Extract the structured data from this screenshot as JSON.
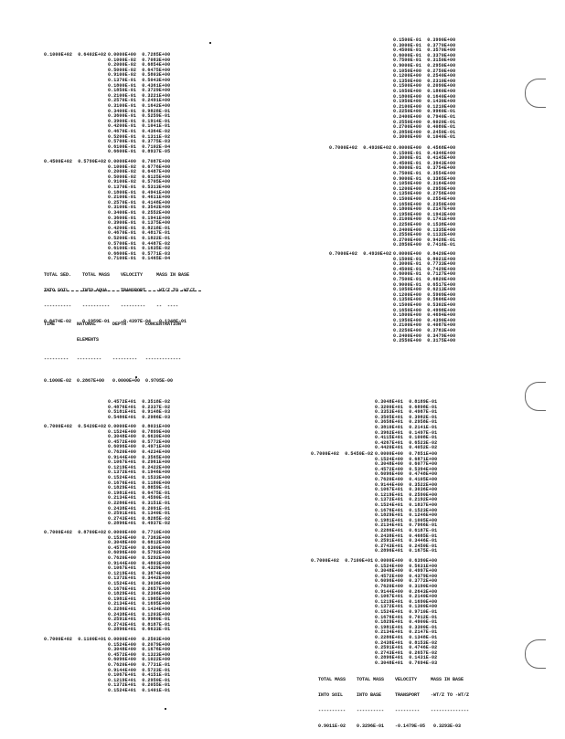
{
  "blocks": [
    {
      "id": "tl1",
      "label": "0.1000E+02  0.6402E+02",
      "rows": [
        "0.0000E+00  0.7285E+00",
        "0.1000E-02  0.7083E+00",
        "0.2000E-02  0.6854E+00",
        "0.5000E-02  0.6475E+00",
        "0.9100E-02  0.5803E+00",
        "0.1370E-01  0.5043E+00",
        "0.1800E-01  0.4361E+00",
        "0.1850E-01  0.3729E+00",
        "0.2100E-01  0.3221E+00",
        "0.2570E-01  0.2491E+00",
        "0.3100E-01  0.1642E+00",
        "0.3400E-01  0.9828E-01",
        "0.3600E-01  0.5259E-01",
        "0.3900E-01  0.1914E-01",
        "0.4200E-01  0.1041E-01",
        "0.4670E-01  0.4364E-02",
        "0.5200E-01  0.1311E-02",
        "0.5700E-01  0.3775E-03",
        "0.6100E-01  0.7102E-04",
        "0.6600E-01  0.8937E-05"
      ]
    },
    {
      "id": "tl2",
      "label": "0.4500E+02  0.5790E+02",
      "rows": [
        "0.0000E+00  0.7087E+00",
        "0.1000E-02  0.6776E+00",
        "0.2000E-02  0.6487E+00",
        "0.5000E-02  0.6125E+00",
        "0.9100E-02  0.5705E+00",
        "0.1370E-01  0.5313E+00",
        "0.1800E-01  0.4941E+00",
        "0.2100E-01  0.4611E+00",
        "0.2570E-01  0.4148E+00",
        "0.3100E-01  0.3542E+00",
        "0.3400E-01  0.2552E+00",
        "0.3600E-01  0.1941E+00",
        "0.3900E-01  0.1375E+00",
        "0.4200E-01  0.8218E-01",
        "0.4670E-01  0.4817E-01",
        "0.5200E-01  0.1822E-01",
        "0.5700E-01  0.4487E-02",
        "0.6100E-01  0.1635E-02",
        "0.6600E-01  0.5771E-03",
        "0.7100E-01  0.1465E-04"
      ]
    },
    {
      "id": "tr0",
      "label": "",
      "rows": [
        "0.1500E-01  0.3990E+00",
        "0.3000E-01  0.3770E+00",
        "0.4500E-01  0.3570E+00",
        "0.6000E-01  0.3370E+00",
        "0.7500E-01  0.3150E+00",
        "0.9000E-01  0.2950E+00",
        "0.1050E+00  0.2750E+00",
        "0.1200E+00  0.2540E+00",
        "0.1350E+00  0.2310E+00",
        "0.1500E+00  0.2090E+00",
        "0.1650E+00  0.1860E+00",
        "0.1800E+00  0.1640E+00",
        "0.1950E+00  0.1430E+00",
        "0.2100E+00  0.1210E+00",
        "0.2250E+00  0.9960E-01",
        "0.2400E+00  0.7940E-01",
        "0.2550E+00  0.6020E-01",
        "0.2700E+00  0.4080E-01",
        "0.2850E+00  0.2450E-01",
        "0.3000E+00  0.1040E-01"
      ]
    },
    {
      "id": "tr1",
      "label": "0.7000E+02  0.4930E+02",
      "rows": [
        "0.0000E+00  0.4568E+00",
        "0.1500E-01  0.4346E+00",
        "0.3000E-01  0.4145E+00",
        "0.4500E-01  0.3943E+00",
        "0.6000E-01  0.3754E+00",
        "0.7500E-01  0.3554E+00",
        "0.9000E-01  0.3365E+00",
        "0.1050E+00  0.3164E+00",
        "0.1200E+00  0.2959E+00",
        "0.1350E+00  0.2756E+00",
        "0.1500E+00  0.2554E+00",
        "0.1650E+00  0.2350E+00",
        "0.1800E+00  0.2147E+00",
        "0.1950E+00  0.1943E+00",
        "0.2100E+00  0.1741E+00",
        "0.2250E+00  0.1538E+00",
        "0.2400E+00  0.1335E+00",
        "0.2550E+00  0.1132E+00",
        "0.2700E+00  0.9428E-01",
        "0.2850E+00  0.7416E-01"
      ]
    },
    {
      "id": "tr2",
      "label": "0.7000E+02  0.4930E+02",
      "rows": [
        "0.0000E+00  0.8420E+00",
        "0.1500E-01  0.8021E+00",
        "0.3000E-01  0.7733E+00",
        "0.4500E-01  0.7429E+00",
        "0.6000E-01  0.7127E+00",
        "0.7500E-01  0.6820E+00",
        "0.9000E-01  0.6517E+00",
        "0.1050E+00  0.6213E+00",
        "0.1200E+00  0.5909E+00",
        "0.1350E+00  0.5606E+00",
        "0.1500E+00  0.5302E+00",
        "0.1650E+00  0.4998E+00",
        "0.1800E+00  0.4694E+00",
        "0.1950E+00  0.4390E+00",
        "0.2100E+00  0.4087E+00",
        "0.2250E+00  0.3783E+00",
        "0.2400E+00  0.3479E+00",
        "0.2550E+00  0.3175E+00"
      ]
    },
    {
      "id": "bl0",
      "label": "",
      "rows": [
        "0.4572E+01  0.3518E-02",
        "0.4876E+01  0.2337E-02",
        "0.5181E+01  0.9148E-03",
        "0.5486E+01  0.2986E-03"
      ]
    },
    {
      "id": "bl1",
      "label": "0.7000E+02  0.5420E+02",
      "rows": [
        "0.0000E+00  0.8031E+00",
        "0.1524E+00  0.7899E+00",
        "0.3048E+00  0.6630E+00",
        "0.4572E+00  0.5772E+00",
        "0.6096E+00  0.4971E+00",
        "0.7620E+00  0.4234E+00",
        "0.9144E+00  0.3565E+00",
        "0.1067E+01  0.2961E+00",
        "0.1219E+01  0.2422E+00",
        "0.1372E+01  0.1946E+00",
        "0.1524E+01  0.1533E+00",
        "0.1676E+01  0.1180E+00",
        "0.1829E+01  0.8859E-01",
        "0.1981E+01  0.6475E-01",
        "0.2134E+01  0.4590E-01",
        "0.2286E+01  0.3151E-01",
        "0.2438E+01  0.2091E-01",
        "0.2591E+01  0.1340E-01",
        "0.2743E+01  0.8285E-02",
        "0.2896E+01  0.4937E-02"
      ]
    },
    {
      "id": "bl2",
      "label": "0.7000E+02  0.8700E+02",
      "rows": [
        "0.0000E+00  0.7710E+00",
        "0.1524E+00  0.7363E+00",
        "0.3048E+00  0.6812E+00",
        "0.4572E+00  0.6300E+00",
        "0.6096E+00  0.5792E+00",
        "0.7620E+00  0.5292E+00",
        "0.9144E+00  0.4803E+00",
        "0.1067E+01  0.4329E+00",
        "0.1219E+01  0.3874E+00",
        "0.1372E+01  0.3442E+00",
        "0.1524E+01  0.3036E+00",
        "0.1676E+01  0.2657E+00",
        "0.1829E+01  0.2306E+00",
        "0.1981E+01  0.1985E+00",
        "0.2134E+01  0.1695E+00",
        "0.2286E+01  0.1434E+00",
        "0.2438E+01  0.1203E+00",
        "0.2591E+01  0.9980E-01",
        "0.2743E+01  0.8187E-01",
        "0.2896E+01  0.6633E-01"
      ]
    },
    {
      "id": "bl3",
      "label": "0.7000E+02  0.1100E+01",
      "rows": [
        "0.0000E+00  0.2503E+00",
        "0.1524E+00  0.2079E+00",
        "0.3048E+00  0.1676E+00",
        "0.4572E+00  0.1323E+00",
        "0.6096E+00  0.1022E+00",
        "0.7620E+00  0.7731E-01",
        "0.9144E+00  0.5723E-01",
        "0.1067E+01  0.4151E-01",
        "0.1219E+01  0.2950E-01",
        "0.1372E+01  0.2055E-01",
        "0.1524E+01  0.1401E-01"
      ]
    },
    {
      "id": "br0",
      "label": "",
      "rows": [
        "0.3048E+01  0.8189E-01",
        "0.3200E+01  0.6898E-01",
        "0.3353E+01  0.4987E-01",
        "0.3505E+01  0.3982E-01",
        "0.3658E+01  0.2958E-01",
        "0.3810E+01  0.2141E-01",
        "0.3962E+01  0.1497E-01",
        "0.4115E+01  0.1008E-01",
        "0.4267E+01  0.6523E-02",
        "0.4420E+01  0.4052E-02"
      ]
    },
    {
      "id": "br1",
      "label": "0.7000E+02  0.5450E-02",
      "rows": [
        "0.0000E+00  0.7851E+00",
        "0.1524E+00  0.6871E+00",
        "0.3048E+00  0.6077E+00",
        "0.4572E+00  0.5394E+00",
        "0.6096E+00  0.4748E+00",
        "0.7620E+00  0.4105E+00",
        "0.9144E+00  0.3522E+00",
        "0.1067E+01  0.3036E+00",
        "0.1219E+01  0.2590E+00",
        "0.1372E+01  0.2192E+00",
        "0.1524E+01  0.1837E+00",
        "0.1676E+01  0.1523E+00",
        "0.1829E+01  0.1246E+00",
        "0.1981E+01  0.1005E+00",
        "0.2134E+01  0.7966E-01",
        "0.2286E+01  0.6187E-01",
        "0.2438E+01  0.4685E-01",
        "0.2591E+01  0.3446E-01",
        "0.2743E+01  0.2450E-01",
        "0.2896E+01  0.1675E-01"
      ]
    },
    {
      "id": "br2",
      "label": "0.7000E+02  0.7100E+01",
      "rows": [
        "0.0000E+00  0.6390E+00",
        "0.1524E+00  0.5631E+00",
        "0.3048E+00  0.4997E+00",
        "0.4572E+00  0.4379E+00",
        "0.6096E+00  0.3772E+00",
        "0.7620E+00  0.3190E+00",
        "0.9144E+00  0.2643E+00",
        "0.1067E+01  0.2140E+00",
        "0.1219E+01  0.1690E+00",
        "0.1372E+01  0.1300E+00",
        "0.1524E+01  0.9710E-01",
        "0.1676E+01  0.7012E-01",
        "0.1829E+01  0.4900E-01",
        "0.1981E+01  0.3300E-01",
        "0.2134E+01  0.2147E-01",
        "0.2286E+01  0.1348E-01",
        "0.2438E+01  0.8153E-02",
        "0.2591E+01  0.4746E-02",
        "0.2743E+01  0.2657E-02",
        "0.2896E+01  0.1431E-02",
        "0.3048E+01  0.7694E-03"
      ]
    }
  ],
  "summary_left": {
    "headers_line1": "TOTAL SED.    TOTAL MASS    VELOCITY     MASS IN BASE",
    "headers_line2": "INTO SOIL     INTO AQUA     TRANSPORT    -WT/Z TO -WT/Z",
    "dashes": "----------    ----------    ---------    --  ----",
    "values": "0.8474E-02    0.1959E-01    -0.4397E-04   0.1348E-01"
  },
  "time_table": {
    "headers_line1": "TIME        NATURAL      DEPTH       CONCENTRATION",
    "headers_line2": "            ELEMENTS",
    "dashes": "---------   ---------    ---------   -------------",
    "values": "0.1000E-02  0.2867E+00   0.0000E+00  0.9705E-00"
  },
  "summary_right": {
    "headers_line1": "TOTAL MASS    TOTAL MASS    VELOCITY     MASS IN BASE",
    "headers_line2": "INTO SOIL     INTO BASE     TRANSPORT    -WT/Z TO -WT/Z",
    "dashes": "----------    ----------    ---------    --------------",
    "values": "0.9011E-02    0.3296E-01    -0.1479E-05   0.3293E-03"
  }
}
